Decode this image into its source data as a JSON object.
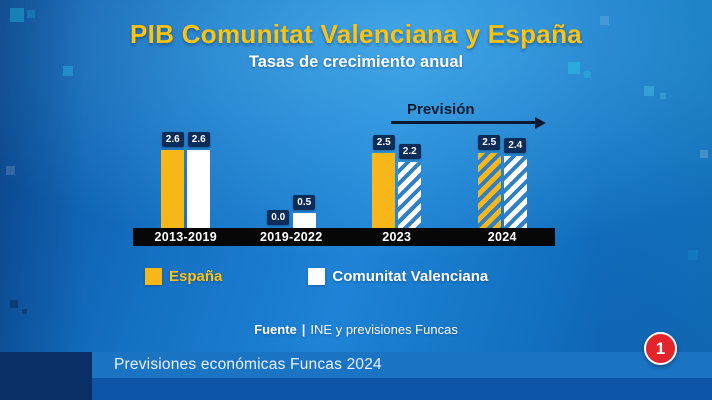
{
  "chart_data": {
    "type": "bar",
    "title": "PIB Comunitat Valenciana y España",
    "subtitle": "Tasas de crecimiento anual",
    "categories": [
      "2013-2019",
      "2019-2022",
      "2023",
      "2024"
    ],
    "series": [
      {
        "name": "España",
        "color": "#f7b718",
        "label_color": "#ffc20e",
        "values": [
          2.6,
          0.0,
          2.5,
          2.5
        ],
        "hatched": [
          false,
          false,
          false,
          true
        ]
      },
      {
        "name": "Comunitat Valenciana",
        "color": "#ffffff",
        "label_color": "#ffffff",
        "values": [
          2.6,
          0.5,
          2.2,
          2.4
        ],
        "hatched": [
          false,
          false,
          true,
          true
        ]
      }
    ],
    "hatch_gap_color": "#2e7fc6",
    "annotation": "Previsión",
    "ylim": [
      0,
      3
    ],
    "legend_position": "bottom",
    "grid": false
  },
  "source": {
    "label": "Fuente",
    "separator": "|",
    "text": "INE y previsiones Funcas"
  },
  "footer": {
    "caption": "Previsiones económicas Funcas 2024",
    "channel_badge": "1"
  }
}
